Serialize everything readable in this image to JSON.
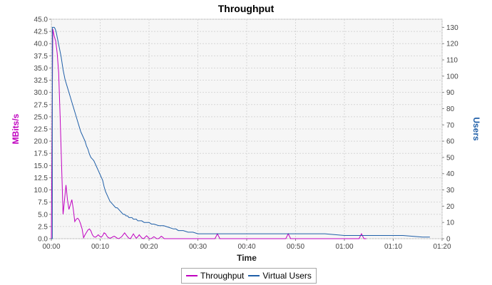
{
  "chart_data": {
    "type": "line",
    "title": "Throughput",
    "xlabel": "Time",
    "ylabel_left": "MBits/s",
    "ylabel_right": "Users",
    "xlim": [
      0,
      80
    ],
    "ylim_left": [
      0,
      45
    ],
    "ylim_right": [
      0,
      135
    ],
    "x_ticks": [
      0,
      10,
      20,
      30,
      40,
      50,
      60,
      70,
      80
    ],
    "x_tick_labels": [
      "00:00",
      "00:10",
      "00:20",
      "00:30",
      "00:40",
      "00:50",
      "01:00",
      "01:10",
      "01:20"
    ],
    "y_left_ticks": [
      0,
      2.5,
      5,
      7.5,
      10,
      12.5,
      15,
      17.5,
      20,
      22.5,
      25,
      27.5,
      30,
      32.5,
      35,
      37.5,
      40,
      42.5,
      45
    ],
    "y_left_tick_labels": [
      "0.0",
      "2.5",
      "5.0",
      "7.5",
      "10.0",
      "12.5",
      "15.0",
      "17.5",
      "20.0",
      "22.5",
      "25.0",
      "27.5",
      "30.0",
      "32.5",
      "35.0",
      "37.5",
      "40.0",
      "42.5",
      "45.0"
    ],
    "y_right_ticks": [
      0,
      10,
      20,
      30,
      40,
      50,
      60,
      70,
      80,
      90,
      100,
      110,
      120,
      130
    ],
    "y_right_tick_labels": [
      "0",
      "10",
      "20",
      "30",
      "40",
      "50",
      "60",
      "70",
      "80",
      "90",
      "100",
      "110",
      "120",
      "130"
    ],
    "grid": true,
    "legend_position": "bottom",
    "series": [
      {
        "name": "Throughput",
        "axis": "left",
        "color": "#c000c0",
        "x": [
          0,
          0.3,
          0.6,
          0.9,
          1.2,
          1.5,
          1.8,
          2.1,
          2.4,
          2.7,
          3.0,
          3.3,
          3.6,
          3.9,
          4.2,
          4.5,
          4.8,
          5.1,
          5.4,
          5.7,
          6.0,
          6.3,
          6.6,
          6.9,
          7.2,
          7.5,
          7.8,
          8.1,
          8.4,
          8.7,
          9.0,
          9.3,
          9.6,
          9.9,
          10.2,
          10.5,
          10.8,
          11.1,
          11.4,
          11.7,
          12.0,
          12.3,
          12.6,
          12.9,
          13.2,
          13.5,
          13.8,
          14.1,
          14.4,
          14.7,
          15.0,
          15.3,
          15.6,
          15.9,
          16.2,
          16.5,
          16.8,
          17.1,
          17.4,
          17.7,
          18.0,
          18.3,
          18.6,
          18.9,
          19.2,
          19.5,
          19.8,
          20.1,
          20.4,
          20.7,
          21.0,
          21.3,
          21.6,
          21.9,
          22.2,
          22.5,
          22.8,
          23.1,
          23.4,
          23.7,
          24.0,
          33.5,
          34.0,
          34.5,
          35.0,
          48.0,
          48.5,
          49.0,
          49.5,
          63.0,
          63.5,
          64.0,
          64.5
        ],
        "y": [
          0,
          43.0,
          41.5,
          40.5,
          38.0,
          34.0,
          25.0,
          15.0,
          5.0,
          8.0,
          11.0,
          8.0,
          6.0,
          7.0,
          8.0,
          6.0,
          3.5,
          4.0,
          4.2,
          3.8,
          3.0,
          2.0,
          0.2,
          0.8,
          1.3,
          1.8,
          2.0,
          1.6,
          0.8,
          0.4,
          0.3,
          0.5,
          0.8,
          0.5,
          0.3,
          0.6,
          1.2,
          1.0,
          0.5,
          0.2,
          0.1,
          0.2,
          0.4,
          0.5,
          0.3,
          0.1,
          0.0,
          0.2,
          0.4,
          0.8,
          1.2,
          0.8,
          0.4,
          0.1,
          0.0,
          0.5,
          1.0,
          0.5,
          0.1,
          0.4,
          0.8,
          0.4,
          0.1,
          0.0,
          0.3,
          0.6,
          0.3,
          0.0,
          0.0,
          0.2,
          0.4,
          0.2,
          0.0,
          0.0,
          0.2,
          0.5,
          0.3,
          0.0,
          0.0,
          0.0,
          0.0,
          0.0,
          1.0,
          0.0,
          0.0,
          0.0,
          1.0,
          0.0,
          0.0,
          0.0,
          1.0,
          0.0,
          0.0
        ]
      },
      {
        "name": "Virtual Users",
        "axis": "right",
        "color": "#1f5fa8",
        "x": [
          0,
          0.2,
          0.2,
          0.4,
          0.6,
          0.8,
          1.0,
          1.2,
          1.4,
          1.6,
          1.8,
          2.0,
          2.2,
          2.4,
          2.6,
          2.8,
          3.0,
          3.3,
          3.6,
          3.9,
          4.2,
          4.5,
          4.8,
          5.1,
          5.4,
          5.7,
          6.0,
          6.3,
          6.6,
          6.9,
          7.2,
          7.5,
          7.8,
          8.1,
          8.4,
          8.7,
          9.0,
          9.3,
          9.6,
          9.9,
          10.2,
          10.5,
          10.8,
          11.1,
          11.4,
          11.7,
          12.0,
          12.3,
          12.6,
          12.9,
          13.2,
          13.5,
          13.8,
          14.1,
          14.4,
          14.7,
          15.0,
          15.3,
          15.6,
          15.9,
          16.2,
          16.5,
          16.8,
          17.1,
          17.4,
          17.7,
          18.0,
          18.5,
          19.0,
          19.5,
          20.0,
          20.5,
          21.0,
          22.0,
          23.0,
          24.0,
          25.0,
          25.5,
          26.0,
          27.0,
          28.0,
          29.0,
          30.0,
          31.0,
          32.0,
          33.0,
          34.0,
          35.0,
          38.0,
          42.0,
          46.0,
          50.0,
          54.0,
          56.0,
          60.0,
          62.0,
          64.0,
          68.0,
          72.0,
          76.0,
          77.5
        ],
        "y": [
          0,
          0,
          130,
          130,
          130,
          129,
          127,
          124,
          121,
          118,
          115,
          112,
          108,
          104,
          101,
          98,
          96,
          93,
          90,
          87,
          84,
          81,
          78,
          75,
          72,
          69,
          66,
          64,
          62,
          60,
          57,
          55,
          52,
          50,
          49,
          48,
          46,
          44,
          42,
          40,
          38,
          36,
          32,
          29,
          27,
          25,
          23,
          22,
          21,
          20,
          19,
          19,
          18,
          17,
          16,
          15,
          15,
          14,
          14,
          13,
          13,
          13,
          12,
          12,
          12,
          11,
          11,
          11,
          10,
          10,
          10,
          9,
          9,
          8,
          8,
          7,
          6,
          6,
          5,
          5,
          4,
          4,
          3,
          3,
          3,
          3,
          3,
          3,
          3,
          3,
          3,
          3,
          3,
          3,
          2,
          2,
          2,
          2,
          2,
          1,
          1
        ]
      }
    ]
  }
}
